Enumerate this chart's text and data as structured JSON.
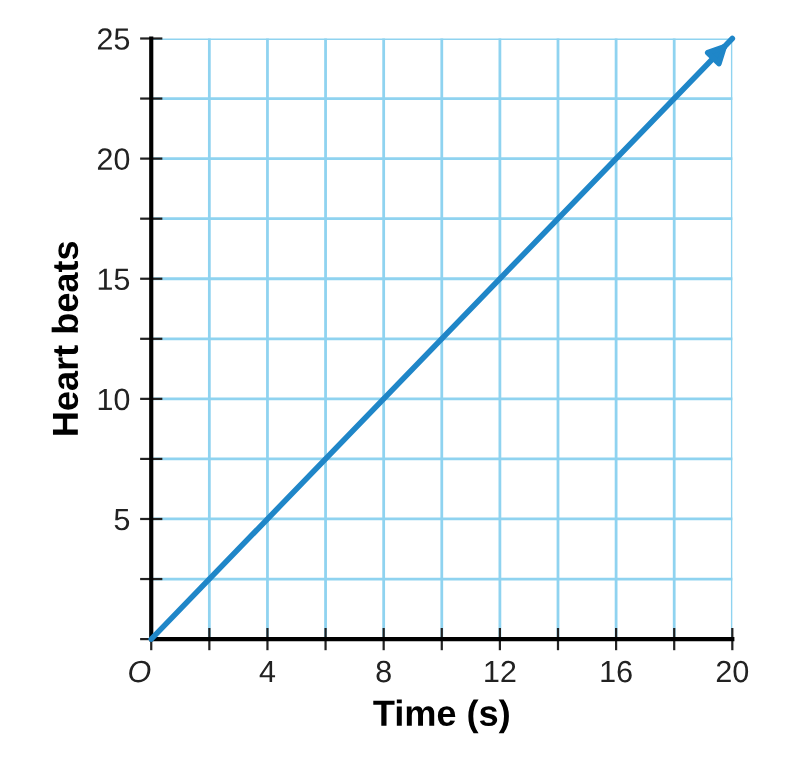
{
  "chart_data": {
    "type": "line",
    "xlabel": "Time (s)",
    "ylabel": "Heart beats",
    "x": [
      0,
      20
    ],
    "series": [
      {
        "color": "#1f86c8",
        "values": [
          0,
          25
        ]
      }
    ],
    "xlim": [
      0,
      20
    ],
    "ylim": [
      0,
      25
    ],
    "xticks": [
      {
        "value": 0,
        "label": "O"
      },
      {
        "value": 2,
        "label": null
      },
      4,
      {
        "value": 6,
        "label": null
      },
      8,
      {
        "value": 10,
        "label": null
      },
      12,
      {
        "value": 14,
        "label": null
      },
      16,
      {
        "value": 18,
        "label": null
      },
      20
    ],
    "yticks": [
      {
        "value": 0,
        "label": null
      },
      {
        "value": 2.5,
        "label": null
      },
      5,
      {
        "value": 7.5,
        "label": null
      },
      10,
      {
        "value": 12.5,
        "label": null
      },
      15,
      {
        "value": 17.5,
        "label": null
      },
      20,
      {
        "value": 22.5,
        "label": null
      },
      25
    ],
    "grid": true,
    "legend": false
  }
}
